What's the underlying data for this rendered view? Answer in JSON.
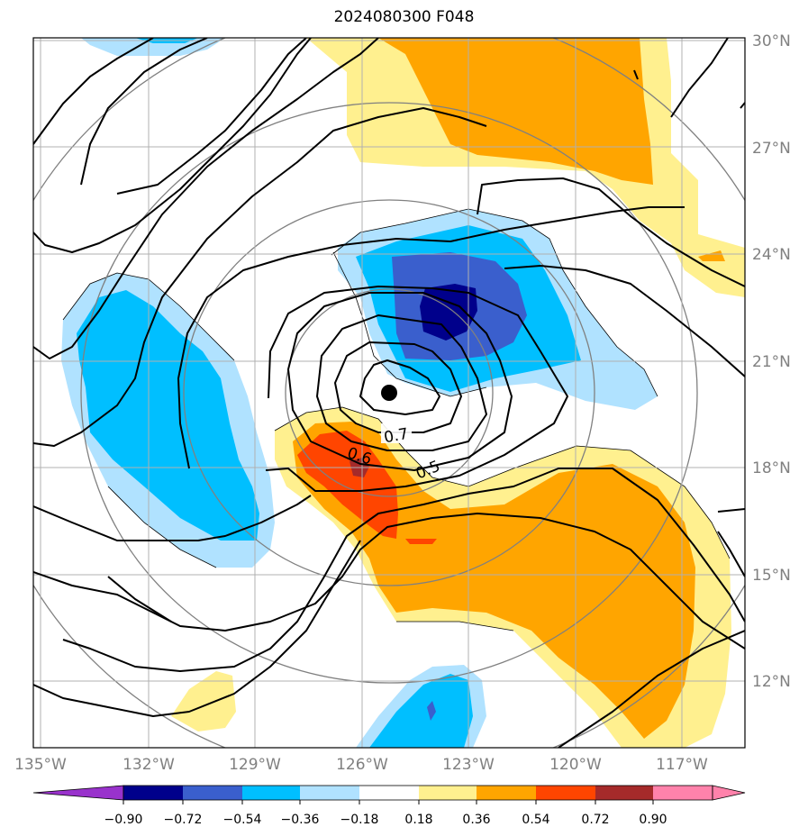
{
  "title": "2024080300 F048",
  "map": {
    "lon_labels": [
      "135°W",
      "132°W",
      "129°W",
      "126°W",
      "123°W",
      "120°W",
      "117°W"
    ],
    "lat_labels": [
      "30°N",
      "27°N",
      "24°N",
      "21°N",
      "18°N",
      "15°N",
      "12°N"
    ],
    "contour_labels": [
      "0.7",
      "0.6",
      "0.5"
    ],
    "center_marker": "storm-center",
    "colors": {
      "neg_090": "#9932cc",
      "neg_072": "#00008b",
      "neg_054": "#3a5fcd",
      "neg_036": "#00bfff",
      "neg_018": "#b0e2ff",
      "pos_018": "#fff08f",
      "pos_036": "#ffa500",
      "pos_054": "#ff4500",
      "pos_072": "#a52a2a",
      "pos_090": "#ff82ab"
    }
  },
  "colorbar": {
    "ticks": [
      "−0.90",
      "−0.72",
      "−0.54",
      "−0.36",
      "−0.18",
      "0.18",
      "0.36",
      "0.54",
      "0.72",
      "0.90"
    ]
  }
}
